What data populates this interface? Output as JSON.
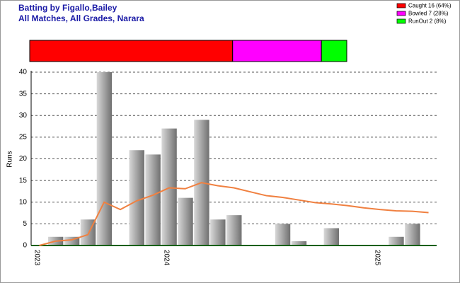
{
  "chart_data": [
    {
      "type": "bar",
      "title": "Batting by Figallo,Bailey",
      "subtitle": "All Matches, All Grades, Narara",
      "ylabel": "Runs",
      "categories": [
        "2023",
        null,
        null,
        null,
        null,
        null,
        null,
        null,
        "2024",
        null,
        null,
        null,
        null,
        null,
        null,
        null,
        null,
        null,
        null,
        null,
        null,
        "2025",
        null,
        null,
        null
      ],
      "values": [
        0,
        2,
        2,
        6,
        40,
        0,
        22,
        21,
        27,
        11,
        29,
        6,
        7,
        0,
        0,
        5,
        1,
        0,
        4,
        0,
        0,
        0,
        2,
        5,
        0
      ],
      "color": "#9a9a9a",
      "line": {
        "color": "#f08040",
        "values": [
          0,
          1,
          1.3,
          2.5,
          10,
          8.3,
          10.3,
          11.6,
          13.3,
          13.1,
          14.5,
          13.8,
          13.3,
          12.4,
          11.5,
          11.1,
          10.5,
          9.9,
          9.6,
          9.2,
          8.7,
          8.3,
          8.0,
          7.9,
          7.6
        ]
      },
      "ylim": [
        0,
        40
      ],
      "yticks": [
        0,
        5,
        10,
        15,
        20,
        25,
        30,
        35,
        40
      ],
      "grid": true
    },
    {
      "type": "stacked-bar",
      "categories": [
        "Caught 16 (64%)",
        "Bowled 7 (28%)",
        "RunOut 2 (8%)"
      ],
      "values": [
        16,
        7,
        2
      ],
      "colors": [
        "#ff0000",
        "#ff00ff",
        "#00ff00"
      ]
    }
  ]
}
